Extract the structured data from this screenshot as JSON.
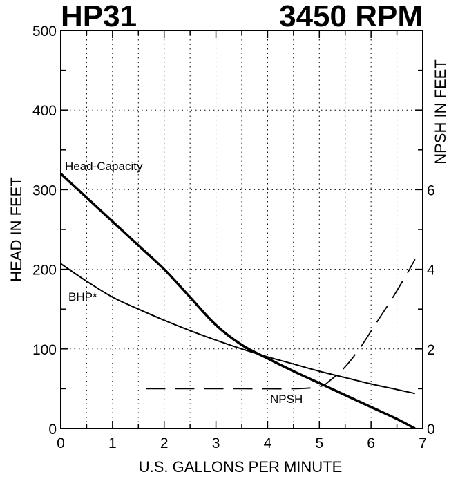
{
  "chart_data": {
    "type": "line",
    "title": "HP31",
    "subtitle": "3450 RPM",
    "xlabel": "U.S. GALLONS PER MINUTE",
    "ylabel": "HEAD IN FEET",
    "y2label": "NPSH IN FEET",
    "xlim": [
      0,
      7
    ],
    "ylim": [
      0,
      500
    ],
    "y2lim": [
      0,
      10
    ],
    "grid": true,
    "x_ticks": [
      "0",
      "1",
      "2",
      "3",
      "4",
      "5",
      "6",
      "7"
    ],
    "y_ticks": [
      "0",
      "100",
      "200",
      "300",
      "400",
      "500"
    ],
    "y2_ticks": [
      "0",
      "2",
      "4",
      "6"
    ],
    "series": [
      {
        "name": "Head-Capacity",
        "axis": "left",
        "style": "thick",
        "x": [
          0,
          0.5,
          1,
          1.5,
          2,
          2.5,
          3,
          3.5,
          4,
          4.5,
          5,
          5.5,
          6,
          6.5,
          6.85
        ],
        "y": [
          320,
          290,
          260,
          230,
          200,
          165,
          130,
          105,
          88,
          72,
          57,
          42,
          27,
          12,
          0
        ]
      },
      {
        "name": "BHP*",
        "axis": "left",
        "style": "thin",
        "x": [
          0,
          0.5,
          1,
          1.5,
          2,
          2.5,
          3,
          3.5,
          4,
          4.5,
          5,
          5.5,
          6,
          6.5,
          6.85
        ],
        "y": [
          207,
          185,
          165,
          150,
          136,
          123,
          111,
          100,
          90,
          81,
          72,
          64,
          56,
          49,
          44
        ]
      },
      {
        "name": "NPSH",
        "axis": "right",
        "style": "dashed",
        "x": [
          1.65,
          2.5,
          3.5,
          4.5,
          5.0,
          5.2,
          5.5,
          5.8,
          6.1,
          6.4,
          6.7,
          6.85
        ],
        "y": [
          1.0,
          1.0,
          1.0,
          1.0,
          1.05,
          1.2,
          1.55,
          2.05,
          2.65,
          3.25,
          3.9,
          4.25
        ]
      }
    ]
  }
}
